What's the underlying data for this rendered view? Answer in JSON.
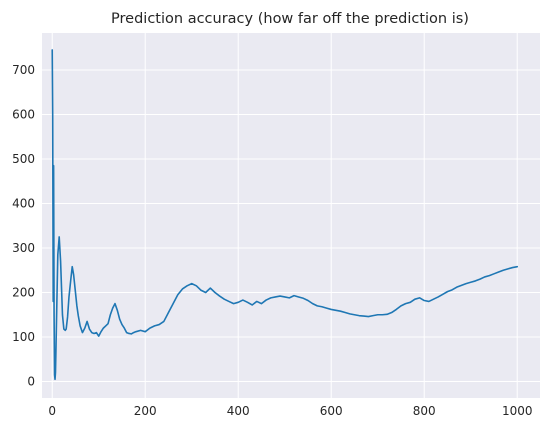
{
  "chart_data": {
    "type": "line",
    "title": "Prediction accuracy (how far off the prediction is)",
    "xlabel": "",
    "ylabel": "",
    "xlim": [
      -22,
      1049
    ],
    "ylim": [
      -37,
      783
    ],
    "grid": true,
    "xticks": [
      0,
      200,
      400,
      600,
      800,
      1000
    ],
    "yticks": [
      0,
      100,
      200,
      300,
      400,
      500,
      600,
      700
    ],
    "series": [
      {
        "color": "#1f77b4",
        "x": [
          0,
          1,
          2,
          3,
          4,
          5,
          6,
          7,
          8,
          10,
          12,
          15,
          18,
          20,
          22,
          25,
          28,
          30,
          33,
          36,
          40,
          43,
          46,
          50,
          53,
          56,
          60,
          65,
          70,
          75,
          80,
          85,
          90,
          95,
          100,
          105,
          110,
          115,
          120,
          125,
          130,
          135,
          140,
          145,
          150,
          155,
          160,
          165,
          170,
          175,
          180,
          190,
          200,
          210,
          220,
          230,
          240,
          250,
          260,
          270,
          280,
          290,
          300,
          310,
          320,
          330,
          340,
          350,
          360,
          370,
          380,
          390,
          400,
          410,
          420,
          430,
          440,
          450,
          460,
          470,
          480,
          490,
          500,
          510,
          520,
          530,
          540,
          550,
          560,
          570,
          580,
          590,
          600,
          610,
          620,
          630,
          640,
          650,
          660,
          670,
          680,
          690,
          700,
          710,
          720,
          730,
          740,
          750,
          760,
          770,
          780,
          790,
          800,
          810,
          820,
          830,
          840,
          850,
          860,
          870,
          880,
          890,
          900,
          910,
          920,
          930,
          940,
          950,
          960,
          970,
          980,
          990,
          1000
        ],
        "y": [
          745,
          600,
          180,
          485,
          150,
          15,
          5,
          20,
          70,
          180,
          285,
          325,
          270,
          210,
          150,
          118,
          115,
          118,
          145,
          190,
          230,
          258,
          240,
          200,
          170,
          148,
          125,
          110,
          120,
          135,
          118,
          110,
          108,
          110,
          102,
          112,
          120,
          125,
          130,
          150,
          165,
          175,
          160,
          140,
          128,
          120,
          110,
          108,
          107,
          110,
          112,
          115,
          112,
          120,
          125,
          128,
          135,
          155,
          175,
          195,
          208,
          215,
          220,
          215,
          205,
          200,
          210,
          200,
          192,
          185,
          180,
          175,
          178,
          183,
          178,
          172,
          180,
          175,
          183,
          188,
          190,
          192,
          190,
          188,
          193,
          190,
          187,
          182,
          175,
          170,
          168,
          165,
          162,
          160,
          158,
          155,
          152,
          150,
          148,
          147,
          146,
          148,
          150,
          150,
          151,
          155,
          162,
          170,
          175,
          178,
          185,
          188,
          182,
          180,
          185,
          190,
          196,
          202,
          206,
          212,
          216,
          220,
          223,
          226,
          230,
          235,
          238,
          242,
          246,
          250,
          253,
          256,
          258
        ]
      }
    ]
  }
}
